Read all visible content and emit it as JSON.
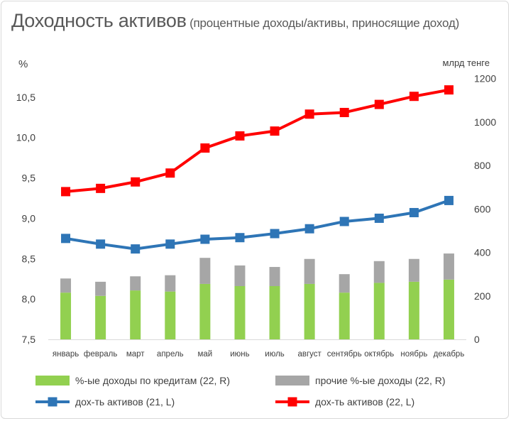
{
  "title": "Доходность активов",
  "subtitle": "(процентные доходы/активы, приносящие доход)",
  "chart_data": {
    "type": "bar",
    "categories": [
      "январь",
      "февраль",
      "март",
      "апрель",
      "май",
      "июнь",
      "июль",
      "август",
      "сентябрь",
      "октябрь",
      "ноябрь",
      "декабрь"
    ],
    "y_left": {
      "label": "%",
      "range": [
        7.5,
        11.0
      ],
      "ticks": [
        "7,5",
        "8,0",
        "8,5",
        "9,0",
        "9,5",
        "10,0",
        "10,5"
      ]
    },
    "y_right": {
      "label": "млрд тенге",
      "range": [
        0,
        1300
      ],
      "ticks": [
        "0",
        "200",
        "400",
        "600",
        "800",
        "1000",
        "1200"
      ]
    },
    "series": [
      {
        "name": "%-ые доходы по кредитам (22, R)",
        "type": "bar-stacked",
        "axis": "right",
        "color": "#92d050",
        "values": [
          215,
          200,
          225,
          220,
          255,
          245,
          245,
          255,
          215,
          260,
          265,
          275
        ]
      },
      {
        "name": "прочие %-ые доходы (22, R)",
        "type": "bar-stacked",
        "axis": "right",
        "color": "#a6a6a6",
        "values": [
          65,
          65,
          65,
          75,
          120,
          95,
          88,
          115,
          85,
          100,
          105,
          120
        ]
      },
      {
        "name": "дох-ть активов (21, L)",
        "type": "line",
        "axis": "left",
        "color": "#2e75b6",
        "values": [
          8.75,
          8.68,
          8.62,
          8.68,
          8.74,
          8.76,
          8.81,
          8.87,
          8.96,
          9.0,
          9.07,
          9.22
        ]
      },
      {
        "name": "дох-ть активов (22, L)",
        "type": "line",
        "axis": "left",
        "color": "#ff0000",
        "values": [
          9.33,
          9.37,
          9.45,
          9.56,
          9.87,
          10.02,
          10.08,
          10.29,
          10.31,
          10.41,
          10.51,
          10.59
        ]
      }
    ],
    "legend_position": "bottom",
    "grid": false
  }
}
